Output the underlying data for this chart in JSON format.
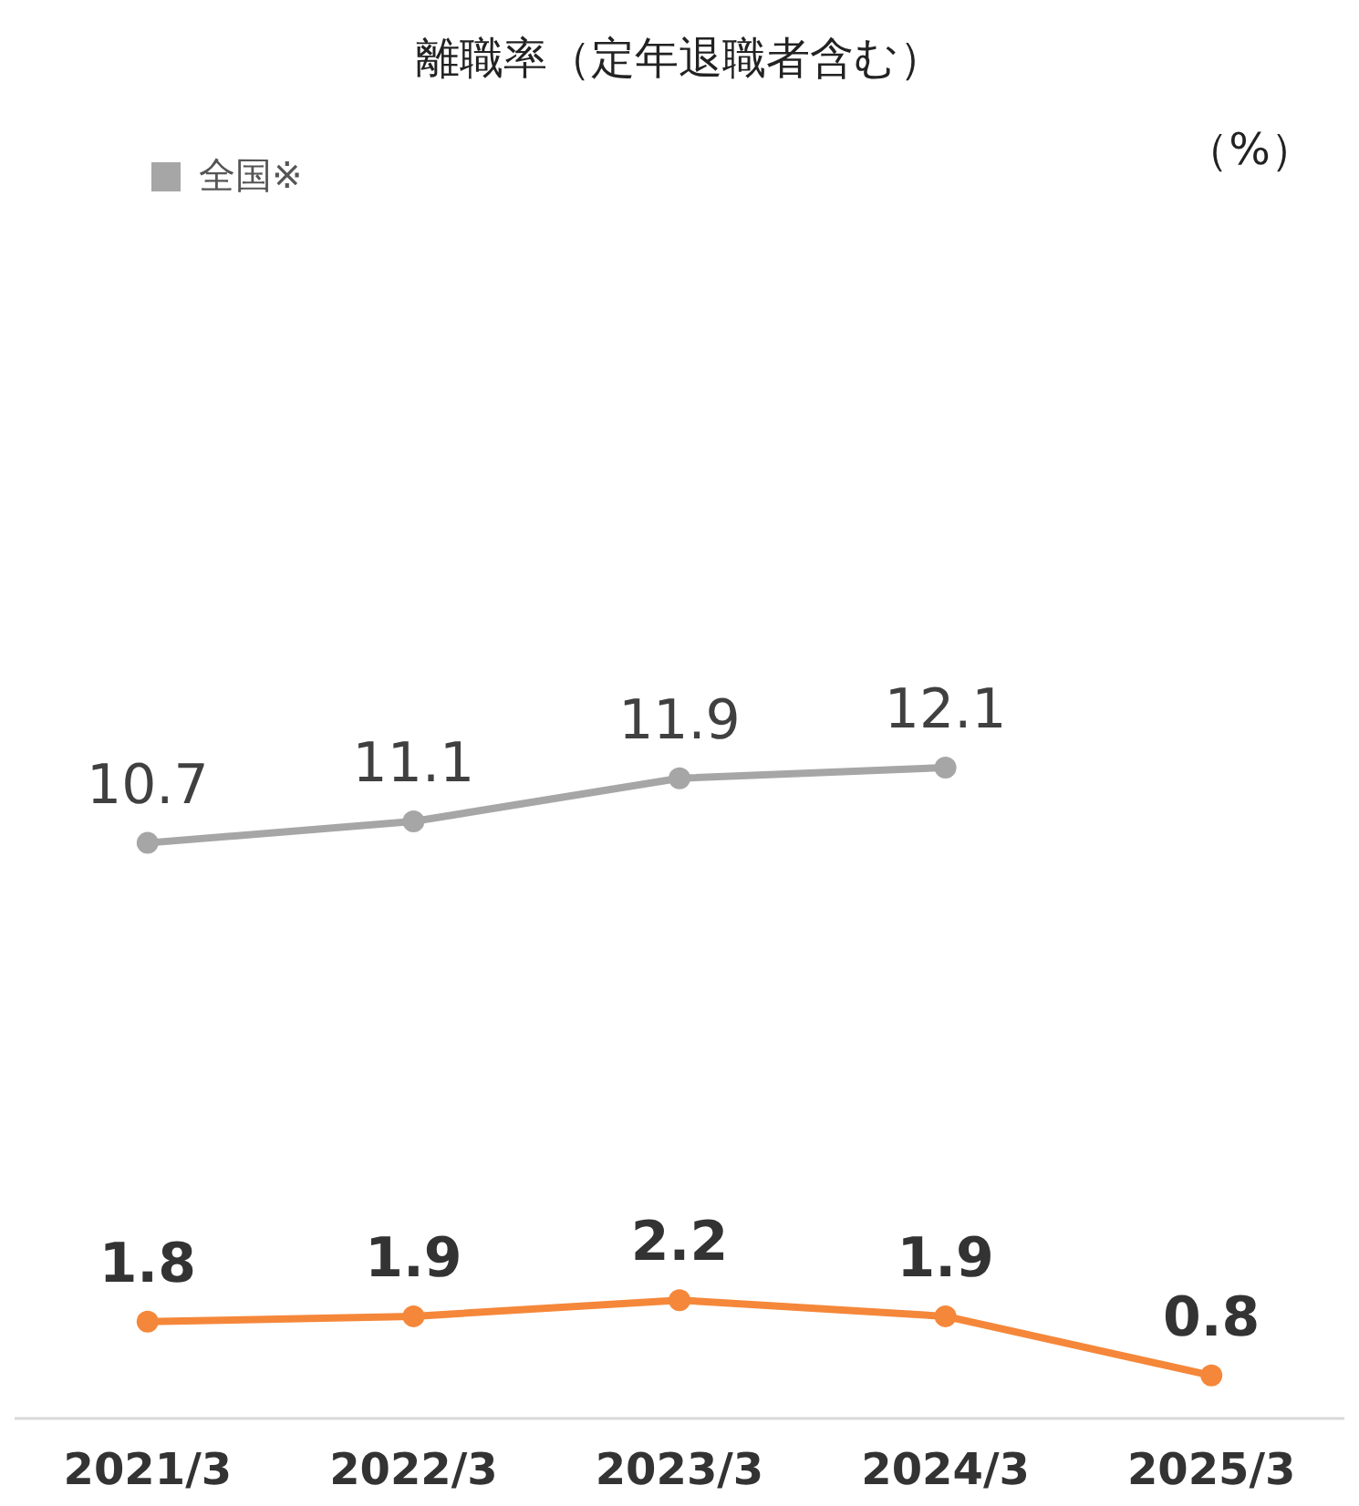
{
  "chart_data": {
    "type": "line",
    "title": "離職率（定年退職者含む）",
    "annotations": [
      "（%）"
    ],
    "categories": [
      "2021/3",
      "2022/3",
      "2023/3",
      "2024/3",
      "2025/3"
    ],
    "series": [
      {
        "name": "全国※",
        "color": "#a6a6a6",
        "values": [
          10.7,
          11.1,
          11.9,
          12.1,
          null
        ]
      },
      {
        "color": "#f5873a",
        "values": [
          1.8,
          1.9,
          2.2,
          1.9,
          0.8
        ]
      }
    ],
    "data_labels": true,
    "legend": "top left",
    "marker": "circle",
    "line_style": "solid",
    "grid": false
  }
}
